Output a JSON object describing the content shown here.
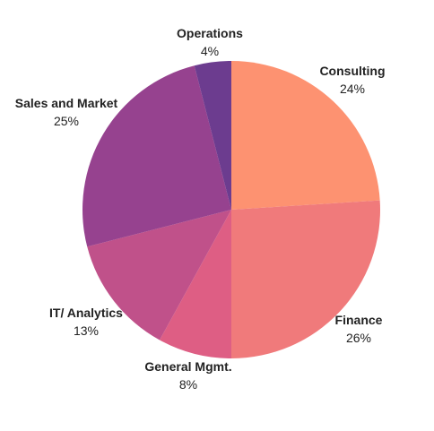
{
  "chart_data": {
    "type": "pie",
    "slices": [
      {
        "label": "Consulting",
        "value": 24,
        "value_label": "24%",
        "color": "#FD9271"
      },
      {
        "label": "Finance",
        "value": 26,
        "value_label": "26%",
        "color": "#F07A7B"
      },
      {
        "label": "General Mgmt.",
        "value": 8,
        "value_label": "8%",
        "color": "#DE5E84"
      },
      {
        "label": "IT/ Analytics",
        "value": 13,
        "value_label": "13%",
        "color": "#C0518A"
      },
      {
        "label": "Sales and Market",
        "value": 25,
        "value_label": "25%",
        "color": "#96428F"
      },
      {
        "label": "Operations",
        "value": 4,
        "value_label": "4%",
        "color": "#6C3C8F"
      }
    ],
    "start": "12 o'clock",
    "direction": "clockwise"
  }
}
